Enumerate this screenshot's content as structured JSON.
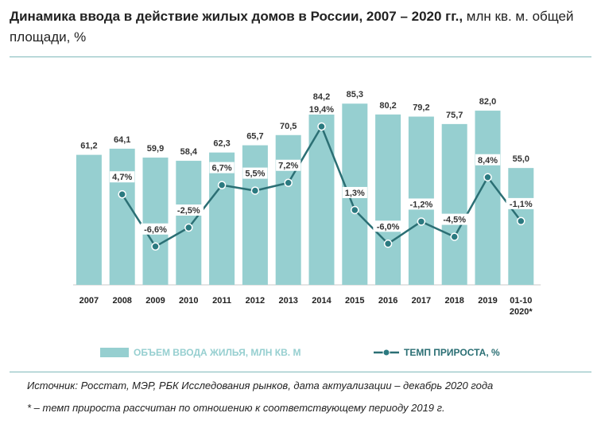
{
  "title": {
    "bold": "Динамика ввода в действие жилых домов в России, 2007 – 2020 гг.,",
    "rest": " млн кв. м. общей площади, %"
  },
  "colors": {
    "bar": "#96cfd0",
    "line": "#2b6f74",
    "marker_fill": "#2b7a80",
    "rule": "#7fb9ba"
  },
  "chart_data": {
    "type": "bar",
    "categories": [
      "2007",
      "2008",
      "2009",
      "2010",
      "2011",
      "2012",
      "2013",
      "2014",
      "2015",
      "2016",
      "2017",
      "2018",
      "2019",
      "01-10\n2020*"
    ],
    "series": [
      {
        "name": "ОБЪЕМ ВВОДА ЖИЛЬЯ, МЛН КВ. М",
        "type": "bar",
        "values": [
          61.2,
          64.1,
          59.9,
          58.4,
          62.3,
          65.7,
          70.5,
          84.2,
          85.3,
          80.2,
          79.2,
          75.7,
          82.0,
          55.0
        ],
        "labels": [
          "61,2",
          "64,1",
          "59,9",
          "58,4",
          "62,3",
          "65,7",
          "70,5",
          "84,2",
          "85,3",
          "80,2",
          "79,2",
          "75,7",
          "82,0",
          "55,0"
        ]
      },
      {
        "name": "ТЕМП ПРИРОСТА, %",
        "type": "line",
        "values": [
          null,
          4.7,
          -6.6,
          -2.5,
          6.7,
          5.5,
          7.2,
          19.4,
          1.3,
          -6.0,
          -1.2,
          -4.5,
          8.4,
          -1.1
        ],
        "labels": [
          "",
          "4,7%",
          "-6,6%",
          "-2,5%",
          "6,7%",
          "5,5%",
          "7,2%",
          "19,4%",
          "1,3%",
          "-6,0%",
          "-1,2%",
          "-4,5%",
          "8,4%",
          "-1,1%"
        ]
      }
    ],
    "legend_position": "bottom",
    "grid": false
  },
  "footnotes": {
    "source": "Источник: Росстат, МЭР, РБК Исследования рынков, дата актуализации – декабрь 2020 года",
    "note": "* – темп прироста рассчитан по отношению к соответствующему периоду 2019 г."
  }
}
